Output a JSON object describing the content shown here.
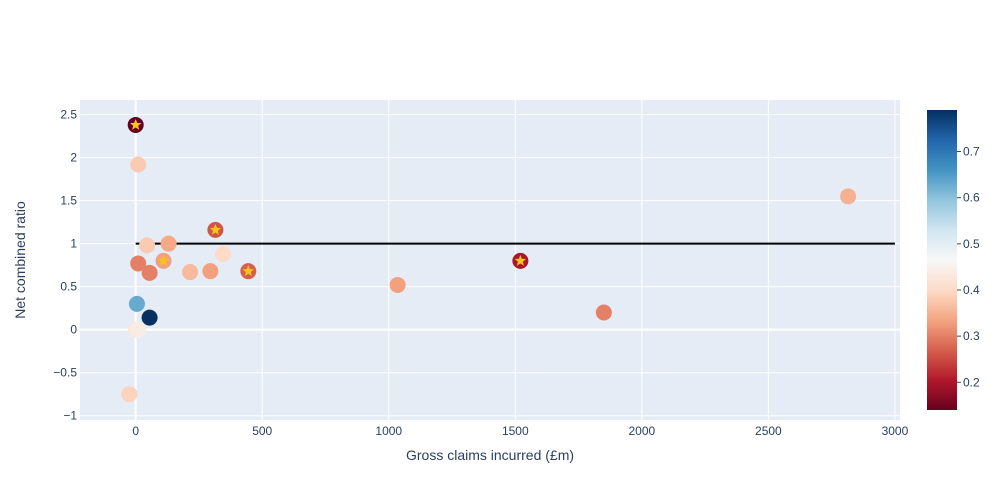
{
  "chart_data": {
    "type": "scatter",
    "xlabel": "Gross claims incurred (£m)",
    "ylabel": "Net combined ratio",
    "xlim": [
      -220,
      3020
    ],
    "ylim": [
      -1.05,
      2.67
    ],
    "x_ticks": [
      0,
      500,
      1000,
      1500,
      2000,
      2500,
      3000
    ],
    "x_tick_labels": [
      "0",
      "500",
      "1000",
      "1500",
      "2000",
      "2500",
      "3000"
    ],
    "y_ticks": [
      -1,
      -0.5,
      0,
      0.5,
      1,
      1.5,
      2,
      2.5
    ],
    "y_tick_labels": [
      "−1",
      "−0.5",
      "0",
      "0.5",
      "1",
      "1.5",
      "2",
      "2.5"
    ],
    "grid": true,
    "reference_line": {
      "y": 1,
      "x_start": 0,
      "x_end": 3000,
      "color": "#000000"
    },
    "colorscale": {
      "name": "RdBu",
      "range": [
        0.14,
        0.79
      ],
      "ticks": [
        0.2,
        0.3,
        0.4,
        0.5,
        0.6,
        0.7
      ],
      "tick_labels": [
        "0.2",
        "0.3",
        "0.4",
        "0.5",
        "0.6",
        "0.7"
      ]
    },
    "star_color": "#f5c518",
    "points": [
      {
        "x": 0,
        "y": 2.38,
        "c": 0.14,
        "star": true
      },
      {
        "x": 10,
        "y": 1.92,
        "c": 0.38,
        "star": false
      },
      {
        "x": 45,
        "y": 0.98,
        "c": 0.38,
        "star": false
      },
      {
        "x": 130,
        "y": 1.0,
        "c": 0.34,
        "star": false
      },
      {
        "x": 315,
        "y": 1.16,
        "c": 0.26,
        "star": true
      },
      {
        "x": 345,
        "y": 0.88,
        "c": 0.4,
        "star": false
      },
      {
        "x": 10,
        "y": 0.77,
        "c": 0.3,
        "star": false
      },
      {
        "x": 110,
        "y": 0.8,
        "c": 0.33,
        "star": true
      },
      {
        "x": 55,
        "y": 0.66,
        "c": 0.3,
        "star": false
      },
      {
        "x": 215,
        "y": 0.67,
        "c": 0.36,
        "star": false
      },
      {
        "x": 295,
        "y": 0.68,
        "c": 0.33,
        "star": false
      },
      {
        "x": 445,
        "y": 0.68,
        "c": 0.27,
        "star": true
      },
      {
        "x": 1035,
        "y": 0.52,
        "c": 0.33,
        "star": false
      },
      {
        "x": 1520,
        "y": 0.8,
        "c": 0.2,
        "star": true
      },
      {
        "x": 1850,
        "y": 0.2,
        "c": 0.3,
        "star": false
      },
      {
        "x": 2815,
        "y": 1.55,
        "c": 0.35,
        "star": false
      },
      {
        "x": 5,
        "y": 0.3,
        "c": 0.63,
        "star": false
      },
      {
        "x": 55,
        "y": 0.14,
        "c": 0.79,
        "star": false
      },
      {
        "x": 0,
        "y": 0.0,
        "c": 0.43,
        "star": false
      },
      {
        "x": 10,
        "y": 0.0,
        "c": 0.44,
        "star": false
      },
      {
        "x": -25,
        "y": -0.75,
        "c": 0.39,
        "star": false
      }
    ]
  }
}
